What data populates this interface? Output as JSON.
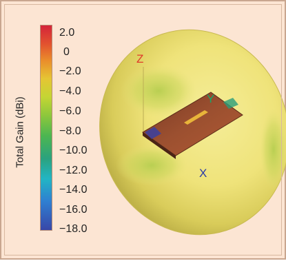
{
  "colorbar": {
    "title": "Total Gain (dBi)",
    "ticks": [
      "2.0",
      "0",
      "−2.0",
      "−4.0",
      "−6.0",
      "−8.0",
      "−10.0",
      "−12.0",
      "−14.0",
      "−16.0",
      "−18.0"
    ],
    "colors": {
      "max": "#d4243a",
      "mid": "#e5c534",
      "min": "#3847a8"
    }
  },
  "axes": {
    "z": {
      "label": "Z",
      "color": "#e03a2a"
    },
    "y": {
      "label": "Y",
      "color": "#16a86a"
    },
    "x": {
      "label": "X",
      "color": "#2a3aa8"
    }
  },
  "panel": {
    "background": "#fce5d3",
    "pattern_color": "#f1e781"
  }
}
